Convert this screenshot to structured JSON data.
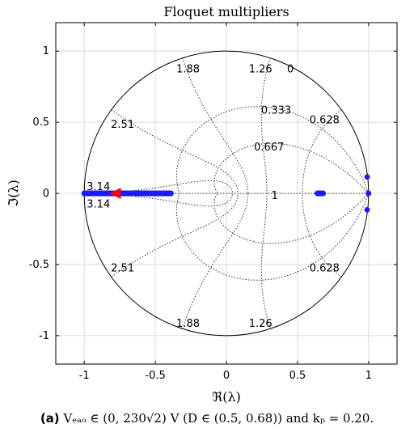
{
  "chart_data": {
    "type": "scatter",
    "title": "Floquet multipliers",
    "xlabel": "ℜ(λ)",
    "ylabel": "ℑ(λ)",
    "xlim": [
      -1.2,
      1.2
    ],
    "ylim": [
      -1.2,
      1.2
    ],
    "xticks": [
      -1,
      -0.5,
      0,
      0.5,
      1
    ],
    "yticks": [
      -1,
      -0.5,
      0,
      0.5,
      1
    ],
    "xtick_labels": [
      "-1",
      "-0.5",
      "0",
      "0.5",
      "1"
    ],
    "ytick_labels": [
      "-1",
      "-0.5",
      "0",
      "0.5",
      "1"
    ],
    "grid": true,
    "unit_circle": true,
    "zeta_grid_labels": [
      {
        "text": "0",
        "x": 0.45,
        "y": 0.88
      },
      {
        "text": "0.333",
        "x": 0.35,
        "y": 0.59
      },
      {
        "text": "0.667",
        "x": 0.3,
        "y": 0.33
      },
      {
        "text": "1",
        "x": 0.34,
        "y": -0.01
      }
    ],
    "wn_grid_labels": [
      {
        "text": "1.88",
        "x": -0.27,
        "y": 0.88
      },
      {
        "text": "1.26",
        "x": 0.24,
        "y": 0.88
      },
      {
        "text": "2.51",
        "x": -0.73,
        "y": 0.49
      },
      {
        "text": "0.628",
        "x": 0.69,
        "y": 0.52
      },
      {
        "text": "3.14",
        "x": -0.9,
        "y": 0.05
      },
      {
        "text": "3.14",
        "x": -0.9,
        "y": -0.07
      },
      {
        "text": "2.51",
        "x": -0.73,
        "y": -0.52
      },
      {
        "text": "0.628",
        "x": 0.69,
        "y": -0.52
      },
      {
        "text": "1.88",
        "x": -0.27,
        "y": -0.91
      },
      {
        "text": "1.26",
        "x": 0.24,
        "y": -0.91
      }
    ],
    "series": [
      {
        "marker": "dot",
        "color": "#1a1aff",
        "segments": [
          {
            "x_from": -1.0,
            "x_to": -0.39,
            "y": 0
          },
          {
            "x_from": 0.64,
            "x_to": 0.68,
            "y": 0
          }
        ],
        "points": [
          [
            1.0,
            0.0
          ],
          [
            0.99,
            0.115
          ],
          [
            0.99,
            -0.115
          ]
        ]
      },
      {
        "marker": "triangle-left",
        "color": "#ff0000",
        "points": [
          [
            -0.77,
            0.0
          ]
        ]
      }
    ]
  },
  "caption": {
    "tag": "(a)",
    "text": "Vₑₐₒ ∈ (0, 230√2) V (D ∈ (0.5, 0.68)) and kₚ = 0.20."
  }
}
